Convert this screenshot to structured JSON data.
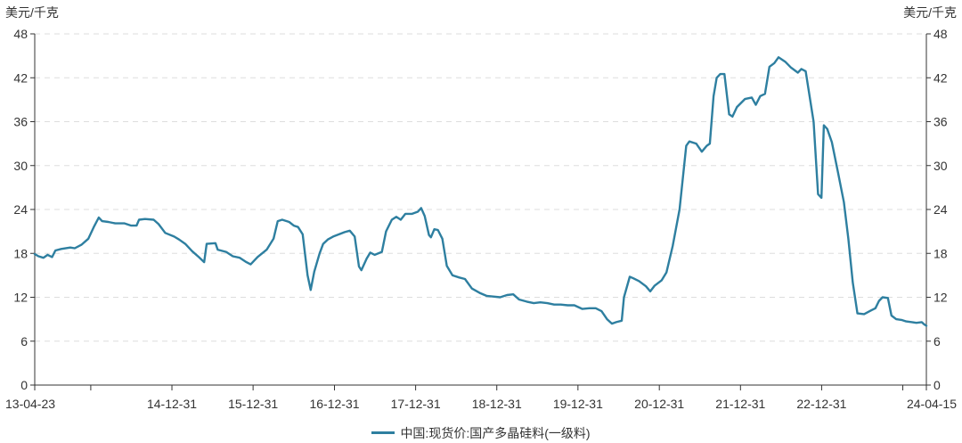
{
  "chart_data": {
    "type": "line",
    "y_unit_left": "美元/千克",
    "y_unit_right": "美元/千克",
    "ylim": [
      0,
      48
    ],
    "yticks": [
      0,
      6,
      12,
      18,
      24,
      30,
      36,
      42,
      48
    ],
    "xlim": [
      "2013-04-23",
      "2024-04-15"
    ],
    "xtick_labels": [
      {
        "date": "2013-04-23",
        "label": "13-04-23"
      },
      {
        "date": "2014-12-31",
        "label": "14-12-31"
      },
      {
        "date": "2015-12-31",
        "label": "15-12-31"
      },
      {
        "date": "2016-12-31",
        "label": "16-12-31"
      },
      {
        "date": "2017-12-31",
        "label": "17-12-31"
      },
      {
        "date": "2018-12-31",
        "label": "18-12-31"
      },
      {
        "date": "2019-12-31",
        "label": "19-12-31"
      },
      {
        "date": "2020-12-31",
        "label": "20-12-31"
      },
      {
        "date": "2021-12-31",
        "label": "21-12-31"
      },
      {
        "date": "2022-12-31",
        "label": "22-12-31"
      },
      {
        "date": "2024-04-15",
        "label": "24-04-15"
      }
    ],
    "xtick_marks": [
      "2013-04-23",
      "2013-12-31",
      "2014-12-31",
      "2015-12-31",
      "2016-12-31",
      "2017-12-31",
      "2018-12-31",
      "2019-12-31",
      "2020-12-31",
      "2021-12-31",
      "2022-12-31",
      "2023-12-31",
      "2024-04-15"
    ],
    "grid": true,
    "legend_position": "bottom-center",
    "colors": {
      "series": "#2e7fa0",
      "axis": "#333333",
      "grid": "#dddddd"
    },
    "series": [
      {
        "name": "中国:现货价:国产多晶硅料(一级料)",
        "points": [
          [
            "2013-04-23",
            17.9
          ],
          [
            "2013-05-10",
            17.6
          ],
          [
            "2013-06-01",
            17.4
          ],
          [
            "2013-06-20",
            17.8
          ],
          [
            "2013-07-10",
            17.5
          ],
          [
            "2013-07-25",
            18.4
          ],
          [
            "2013-08-20",
            18.6
          ],
          [
            "2013-09-30",
            18.8
          ],
          [
            "2013-10-20",
            18.7
          ],
          [
            "2013-11-20",
            19.2
          ],
          [
            "2013-12-20",
            20.0
          ],
          [
            "2014-01-15",
            21.7
          ],
          [
            "2014-02-05",
            22.9
          ],
          [
            "2014-02-20",
            22.4
          ],
          [
            "2014-03-20",
            22.3
          ],
          [
            "2014-04-20",
            22.1
          ],
          [
            "2014-06-01",
            22.1
          ],
          [
            "2014-07-01",
            21.8
          ],
          [
            "2014-07-25",
            21.8
          ],
          [
            "2014-08-05",
            22.6
          ],
          [
            "2014-09-01",
            22.7
          ],
          [
            "2014-10-10",
            22.6
          ],
          [
            "2014-11-01",
            22.0
          ],
          [
            "2014-12-01",
            20.8
          ],
          [
            "2015-01-10",
            20.3
          ],
          [
            "2015-02-01",
            19.9
          ],
          [
            "2015-03-01",
            19.3
          ],
          [
            "2015-04-01",
            18.3
          ],
          [
            "2015-05-01",
            17.5
          ],
          [
            "2015-05-25",
            16.8
          ],
          [
            "2015-06-05",
            19.3
          ],
          [
            "2015-07-15",
            19.4
          ],
          [
            "2015-07-25",
            18.5
          ],
          [
            "2015-09-01",
            18.2
          ],
          [
            "2015-10-01",
            17.6
          ],
          [
            "2015-11-01",
            17.4
          ],
          [
            "2015-12-01",
            16.8
          ],
          [
            "2015-12-20",
            16.5
          ],
          [
            "2016-01-20",
            17.5
          ],
          [
            "2016-03-01",
            18.5
          ],
          [
            "2016-04-01",
            20.0
          ],
          [
            "2016-04-20",
            22.4
          ],
          [
            "2016-05-10",
            22.6
          ],
          [
            "2016-06-10",
            22.3
          ],
          [
            "2016-07-01",
            21.8
          ],
          [
            "2016-07-20",
            21.6
          ],
          [
            "2016-08-10",
            20.6
          ],
          [
            "2016-09-01",
            15.0
          ],
          [
            "2016-09-15",
            13.0
          ],
          [
            "2016-10-01",
            15.5
          ],
          [
            "2016-10-25",
            18.0
          ],
          [
            "2016-11-10",
            19.3
          ],
          [
            "2016-12-01",
            19.9
          ],
          [
            "2016-12-25",
            20.3
          ],
          [
            "2017-01-20",
            20.6
          ],
          [
            "2017-02-15",
            20.9
          ],
          [
            "2017-03-10",
            21.1
          ],
          [
            "2017-04-01",
            20.3
          ],
          [
            "2017-04-20",
            16.2
          ],
          [
            "2017-05-01",
            15.7
          ],
          [
            "2017-05-25",
            17.3
          ],
          [
            "2017-06-10",
            18.1
          ],
          [
            "2017-06-30",
            17.8
          ],
          [
            "2017-08-01",
            18.2
          ],
          [
            "2017-08-20",
            21.0
          ],
          [
            "2017-09-15",
            22.6
          ],
          [
            "2017-10-05",
            23.0
          ],
          [
            "2017-10-25",
            22.6
          ],
          [
            "2017-11-15",
            23.4
          ],
          [
            "2017-12-15",
            23.4
          ],
          [
            "2018-01-10",
            23.7
          ],
          [
            "2018-01-25",
            24.2
          ],
          [
            "2018-02-10",
            23.1
          ],
          [
            "2018-03-01",
            20.5
          ],
          [
            "2018-03-10",
            20.2
          ],
          [
            "2018-03-25",
            21.3
          ],
          [
            "2018-04-10",
            21.2
          ],
          [
            "2018-04-30",
            20.0
          ],
          [
            "2018-05-20",
            16.3
          ],
          [
            "2018-06-15",
            15.0
          ],
          [
            "2018-07-15",
            14.7
          ],
          [
            "2018-08-10",
            14.5
          ],
          [
            "2018-09-10",
            13.2
          ],
          [
            "2018-10-15",
            12.6
          ],
          [
            "2018-11-15",
            12.2
          ],
          [
            "2018-12-15",
            12.1
          ],
          [
            "2019-01-15",
            12.0
          ],
          [
            "2019-02-15",
            12.3
          ],
          [
            "2019-03-15",
            12.4
          ],
          [
            "2019-04-10",
            11.7
          ],
          [
            "2019-05-15",
            11.4
          ],
          [
            "2019-06-15",
            11.2
          ],
          [
            "2019-07-15",
            11.3
          ],
          [
            "2019-08-15",
            11.2
          ],
          [
            "2019-09-15",
            11.0
          ],
          [
            "2019-10-15",
            11.0
          ],
          [
            "2019-11-15",
            10.9
          ],
          [
            "2019-12-15",
            10.9
          ],
          [
            "2020-01-20",
            10.4
          ],
          [
            "2020-02-20",
            10.5
          ],
          [
            "2020-03-20",
            10.5
          ],
          [
            "2020-04-15",
            10.1
          ],
          [
            "2020-05-10",
            9.0
          ],
          [
            "2020-06-01",
            8.4
          ],
          [
            "2020-06-20",
            8.6
          ],
          [
            "2020-07-15",
            8.8
          ],
          [
            "2020-07-25",
            12.0
          ],
          [
            "2020-08-20",
            14.8
          ],
          [
            "2020-09-05",
            14.6
          ],
          [
            "2020-10-01",
            14.2
          ],
          [
            "2020-11-01",
            13.5
          ],
          [
            "2020-11-20",
            12.8
          ],
          [
            "2020-12-10",
            13.6
          ],
          [
            "2021-01-10",
            14.3
          ],
          [
            "2021-02-01",
            15.4
          ],
          [
            "2021-03-01",
            19.0
          ],
          [
            "2021-04-01",
            24.0
          ],
          [
            "2021-05-01",
            32.7
          ],
          [
            "2021-05-15",
            33.3
          ],
          [
            "2021-06-15",
            33.0
          ],
          [
            "2021-07-10",
            31.9
          ],
          [
            "2021-08-01",
            32.7
          ],
          [
            "2021-08-15",
            33.0
          ],
          [
            "2021-09-01",
            39.5
          ],
          [
            "2021-09-15",
            42.0
          ],
          [
            "2021-10-01",
            42.5
          ],
          [
            "2021-10-20",
            42.5
          ],
          [
            "2021-11-10",
            37.0
          ],
          [
            "2021-11-25",
            36.7
          ],
          [
            "2021-12-15",
            38.0
          ],
          [
            "2022-01-20",
            39.1
          ],
          [
            "2022-02-20",
            39.3
          ],
          [
            "2022-03-10",
            38.3
          ],
          [
            "2022-03-30",
            39.5
          ],
          [
            "2022-04-20",
            39.8
          ],
          [
            "2022-05-10",
            43.5
          ],
          [
            "2022-06-01",
            44.0
          ],
          [
            "2022-06-20",
            44.8
          ],
          [
            "2022-07-20",
            44.2
          ],
          [
            "2022-08-15",
            43.4
          ],
          [
            "2022-09-15",
            42.7
          ],
          [
            "2022-10-01",
            43.2
          ],
          [
            "2022-10-20",
            42.9
          ],
          [
            "2022-11-25",
            36.0
          ],
          [
            "2022-12-15",
            26.1
          ],
          [
            "2022-12-30",
            25.6
          ],
          [
            "2023-01-10",
            35.5
          ],
          [
            "2023-01-25",
            35.0
          ],
          [
            "2023-02-15",
            33.2
          ],
          [
            "2023-03-15",
            29.0
          ],
          [
            "2023-04-10",
            25.0
          ],
          [
            "2023-04-30",
            20.0
          ],
          [
            "2023-05-20",
            14.0
          ],
          [
            "2023-06-10",
            9.8
          ],
          [
            "2023-07-10",
            9.7
          ],
          [
            "2023-08-10",
            10.2
          ],
          [
            "2023-08-30",
            10.5
          ],
          [
            "2023-09-15",
            11.5
          ],
          [
            "2023-10-01",
            12.0
          ],
          [
            "2023-10-25",
            11.9
          ],
          [
            "2023-11-10",
            9.5
          ],
          [
            "2023-12-01",
            9.0
          ],
          [
            "2023-12-25",
            8.9
          ],
          [
            "2024-01-15",
            8.7
          ],
          [
            "2024-02-10",
            8.6
          ],
          [
            "2024-03-01",
            8.5
          ],
          [
            "2024-03-25",
            8.6
          ],
          [
            "2024-04-05",
            8.3
          ],
          [
            "2024-04-15",
            8.1
          ]
        ]
      }
    ]
  }
}
